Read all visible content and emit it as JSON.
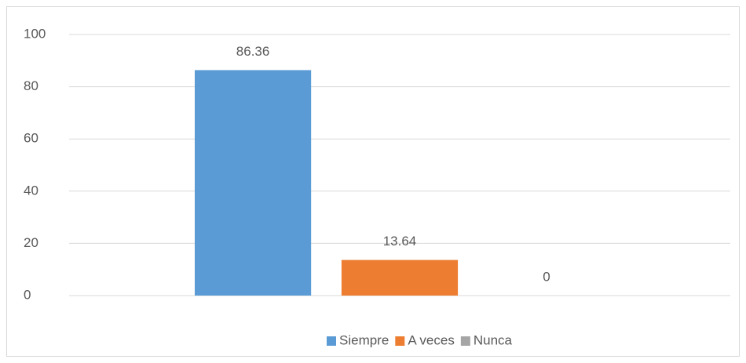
{
  "chart_data": {
    "type": "bar",
    "categories": [
      null
    ],
    "series": [
      {
        "name": "Siempre",
        "color": "#5b9bd5",
        "values": [
          86.36
        ]
      },
      {
        "name": "A veces",
        "color": "#ed7d31",
        "values": [
          13.64
        ]
      },
      {
        "name": "Nunca",
        "color": "#a5a5a5",
        "values": [
          0
        ]
      }
    ],
    "ylim": [
      0,
      100
    ],
    "yticks": [
      0,
      20,
      40,
      60,
      80,
      100
    ],
    "grid": true,
    "legend": "bottom"
  }
}
